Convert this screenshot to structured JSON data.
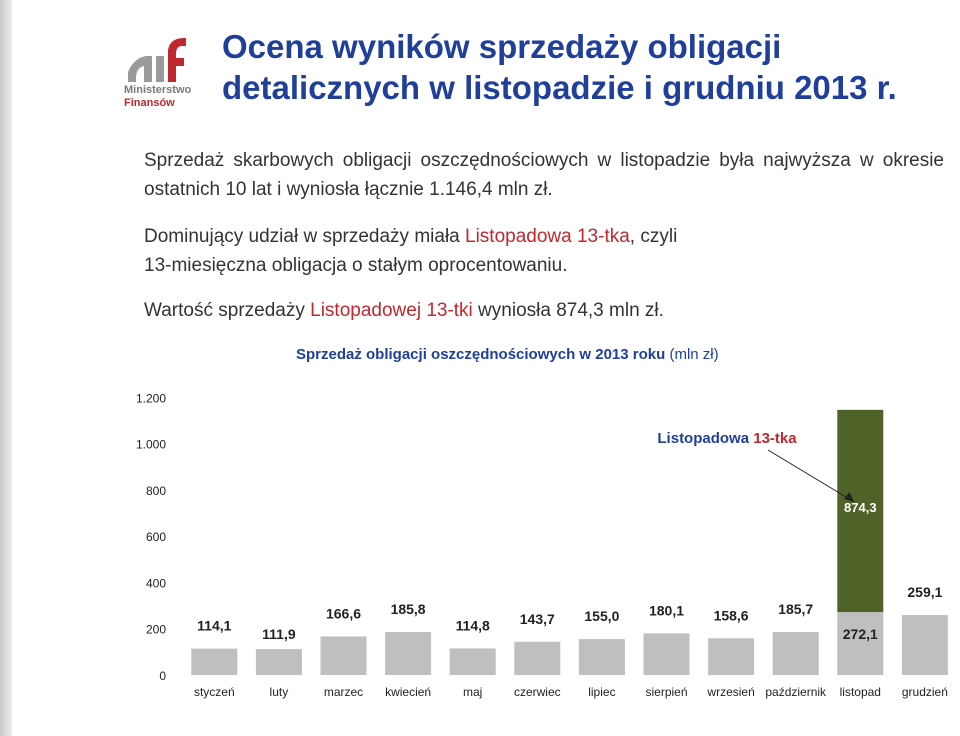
{
  "logo": {
    "line1": "Ministerstwo",
    "line2": "Finansów"
  },
  "title": {
    "line1": "Ocena wyników sprzedaży obligacji",
    "line2": "detalicznych w listopadzie i grudniu 2013 r."
  },
  "paragraphs": {
    "p1": "Sprzedaż skarbowych obligacji oszczędnościowych w listopadzie była najwyższa w okresie ostatnich 10 lat i wyniosła łącznie 1.146,4 mln zł.",
    "p2_a": "Dominujący udział w sprzedaży miała ",
    "p2_b": "Listopadowa 13-tka",
    "p2_c": ", czyli",
    "p2_d": "13-miesięczna obligacja o stałym oprocentowaniu.",
    "p3_a": "Wartość sprzedaży ",
    "p3_b": "Listopadowej 13-tki",
    "p3_c": " wyniosła 874,3 mln zł."
  },
  "colors": {
    "title": "#1f3f9a",
    "accent": "#c0282d",
    "bar": "#bfbfbf",
    "highlight": "#4f6228"
  },
  "chart_data": {
    "type": "bar",
    "stacked": true,
    "title": "Sprzedaż obligacji oszczędnościowych w 2013 roku",
    "title_unit": "(mln zł)",
    "categories": [
      "styczeń",
      "luty",
      "marzec",
      "kwiecień",
      "maj",
      "czerwiec",
      "lipiec",
      "sierpień",
      "wrzesień",
      "październik",
      "listopad",
      "grudzień"
    ],
    "values": [
      114.1,
      111.9,
      166.6,
      185.8,
      114.8,
      143.7,
      155.0,
      180.1,
      158.6,
      185.7,
      272.1,
      259.1
    ],
    "value_labels": [
      "114,1",
      "111,9",
      "166,6",
      "185,8",
      "114,8",
      "143,7",
      "155,0",
      "180,1",
      "158,6",
      "185,7",
      "272,1",
      "259,1"
    ],
    "highlight": {
      "category": "listopad",
      "value": 874.3,
      "value_label": "874,3",
      "annotation_a": "Listopadowa ",
      "annotation_b": "13-tka"
    },
    "ylim": [
      0,
      1200
    ],
    "yticks": [
      0,
      200,
      400,
      600,
      800,
      1000,
      1200
    ],
    "ytick_labels": [
      "0",
      "200",
      "400",
      "600",
      "800",
      "1.000",
      "1.200"
    ],
    "grid": false
  }
}
